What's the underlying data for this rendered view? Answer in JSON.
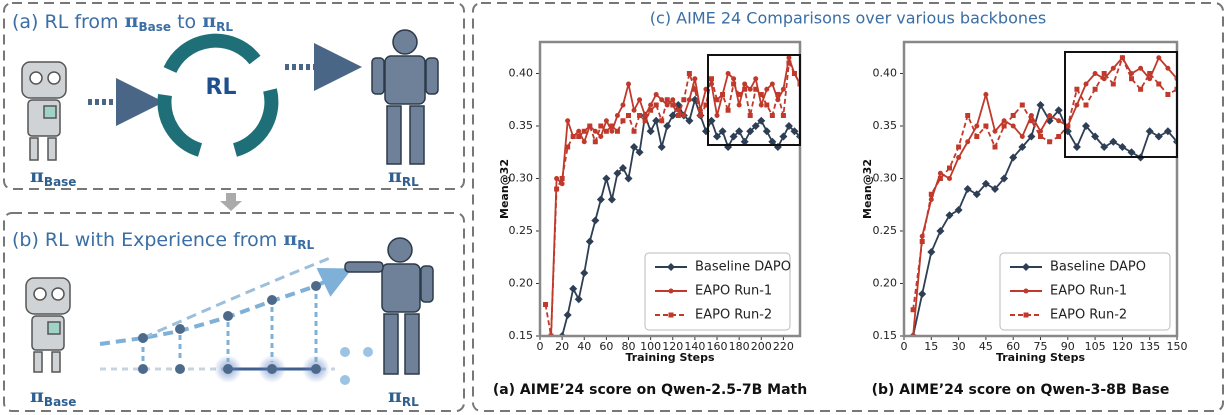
{
  "panel_a": {
    "prefix": "(a) RL from",
    "symbol_from": "π",
    "sub_from": "Base",
    "middle": "to",
    "symbol_to": "π",
    "sub_to": "RL",
    "cycle_label": "RL",
    "left_robot": {
      "symbol": "π",
      "sub": "Base"
    },
    "right_robot": {
      "symbol": "π",
      "sub": "RL"
    }
  },
  "panel_b": {
    "prefix": "(b) RL with Experience from",
    "symbol": "π",
    "sub": "RL",
    "left_robot": {
      "symbol": "π",
      "sub": "Base"
    },
    "right_robot": {
      "symbol": "π",
      "sub": "RL"
    }
  },
  "figure_title": "(c) AIME 24 Comparisons over various backbones",
  "chart_data": [
    {
      "type": "line",
      "caption": "(a) AIME’24 score on Qwen-2.5-7B Math",
      "x_label": "Training Steps",
      "y_label": "Mean@32",
      "x": [
        5,
        10,
        15,
        20,
        25,
        30,
        35,
        40,
        45,
        50,
        55,
        60,
        65,
        70,
        75,
        80,
        85,
        90,
        95,
        100,
        105,
        110,
        115,
        120,
        125,
        130,
        135,
        140,
        145,
        150,
        155,
        160,
        165,
        170,
        175,
        180,
        185,
        190,
        195,
        200,
        205,
        210,
        215,
        220,
        225,
        230,
        235
      ],
      "xlim": [
        0,
        235
      ],
      "xticks": [
        0,
        20,
        40,
        60,
        80,
        100,
        120,
        140,
        160,
        180,
        200,
        220
      ],
      "ylim": [
        0.15,
        0.43
      ],
      "yticks": [
        {
          "value": 0.15,
          "label": "0.15"
        },
        {
          "value": 0.2,
          "label": "0.20"
        },
        {
          "value": 0.25,
          "label": "0.25"
        },
        {
          "value": 0.3,
          "label": "0.30"
        },
        {
          "value": 0.35,
          "label": "0.35"
        },
        {
          "value": 0.4,
          "label": "0.40"
        }
      ],
      "legend": "lower right",
      "series": [
        {
          "name": "Baseline DAPO",
          "color": "#2e3f55",
          "marker": "diamond",
          "dash": false,
          "values": [
            null,
            null,
            null,
            0.15,
            0.17,
            0.195,
            0.185,
            0.21,
            0.24,
            0.26,
            0.28,
            0.3,
            0.28,
            0.305,
            0.31,
            0.3,
            0.33,
            0.325,
            0.36,
            0.345,
            0.355,
            0.33,
            0.35,
            0.36,
            0.37,
            0.36,
            0.355,
            0.375,
            0.36,
            0.345,
            0.355,
            0.34,
            0.345,
            0.33,
            0.34,
            0.345,
            0.335,
            0.345,
            0.35,
            0.355,
            0.345,
            0.335,
            0.33,
            0.34,
            0.35,
            0.345,
            0.34
          ]
        },
        {
          "name": "EAPO Run-1",
          "color": "#c0392b",
          "marker": "circle",
          "dash": false,
          "values": [
            null,
            0.15,
            0.3,
            0.295,
            0.355,
            0.34,
            0.345,
            0.335,
            0.35,
            0.345,
            0.34,
            0.355,
            0.345,
            0.36,
            0.37,
            0.39,
            0.365,
            0.375,
            0.36,
            0.37,
            0.38,
            0.375,
            0.37,
            0.375,
            0.365,
            0.36,
            0.375,
            0.395,
            0.365,
            0.385,
            0.39,
            0.36,
            0.38,
            0.4,
            0.395,
            0.37,
            0.39,
            0.385,
            0.395,
            0.37,
            0.385,
            0.39,
            0.375,
            0.385,
            0.415,
            0.4,
            0.39
          ]
        },
        {
          "name": "EAPO Run-2",
          "color": "#c0392b",
          "marker": "square",
          "dash": true,
          "values": [
            0.18,
            0.15,
            0.29,
            0.3,
            0.33,
            0.34,
            0.34,
            0.345,
            0.35,
            0.335,
            0.35,
            0.345,
            0.35,
            0.345,
            0.355,
            0.36,
            0.345,
            0.36,
            0.355,
            0.365,
            0.37,
            0.355,
            0.375,
            0.37,
            0.36,
            0.375,
            0.4,
            0.385,
            0.36,
            0.37,
            0.395,
            0.375,
            0.38,
            0.365,
            0.39,
            0.38,
            0.385,
            0.36,
            0.385,
            0.38,
            0.37,
            0.36,
            0.38,
            0.36,
            0.41,
            0.4,
            0.39
          ]
        }
      ]
    },
    {
      "type": "line",
      "caption": "(b) AIME’24 score on Qwen-3-8B  Base",
      "x_label": "Training Steps",
      "y_label": "Mean@32",
      "x": [
        5,
        10,
        15,
        20,
        25,
        30,
        35,
        40,
        45,
        50,
        55,
        60,
        65,
        70,
        75,
        80,
        85,
        90,
        95,
        100,
        105,
        110,
        115,
        120,
        125,
        130,
        135,
        140,
        145,
        150
      ],
      "xlim": [
        0,
        150
      ],
      "xticks": [
        0,
        15,
        30,
        45,
        60,
        75,
        90,
        105,
        120,
        135,
        150
      ],
      "ylim": [
        0.15,
        0.43
      ],
      "yticks": [
        {
          "value": 0.15,
          "label": "0.15"
        },
        {
          "value": 0.2,
          "label": "0.20"
        },
        {
          "value": 0.25,
          "label": "0.25"
        },
        {
          "value": 0.3,
          "label": "0.30"
        },
        {
          "value": 0.35,
          "label": "0.35"
        },
        {
          "value": 0.4,
          "label": "0.40"
        }
      ],
      "legend": "lower right",
      "series": [
        {
          "name": "Baseline DAPO",
          "color": "#2e3f55",
          "marker": "diamond",
          "dash": false,
          "values": [
            0.15,
            0.19,
            0.23,
            0.25,
            0.265,
            0.27,
            0.29,
            0.285,
            0.295,
            0.29,
            0.3,
            0.32,
            0.33,
            0.34,
            0.37,
            0.355,
            0.365,
            0.345,
            0.33,
            0.35,
            0.34,
            0.33,
            0.335,
            0.33,
            0.325,
            0.32,
            0.345,
            0.34,
            0.345,
            0.335
          ]
        },
        {
          "name": "EAPO Run-1",
          "color": "#c0392b",
          "marker": "circle",
          "dash": false,
          "values": [
            0.15,
            0.245,
            0.28,
            0.305,
            0.3,
            0.32,
            0.335,
            0.35,
            0.38,
            0.345,
            0.355,
            0.35,
            0.34,
            0.36,
            0.345,
            0.36,
            0.355,
            0.35,
            0.37,
            0.39,
            0.4,
            0.395,
            0.405,
            0.415,
            0.4,
            0.405,
            0.395,
            0.415,
            0.405,
            0.395
          ]
        },
        {
          "name": "EAPO Run-2",
          "color": "#c0392b",
          "marker": "square",
          "dash": true,
          "values": [
            0.175,
            0.24,
            0.285,
            0.3,
            0.31,
            0.33,
            0.36,
            0.34,
            0.35,
            0.33,
            0.35,
            0.36,
            0.37,
            0.355,
            0.34,
            0.335,
            0.34,
            0.35,
            0.385,
            0.37,
            0.385,
            0.4,
            0.39,
            0.415,
            0.395,
            0.385,
            0.4,
            0.39,
            0.38,
            0.385
          ]
        }
      ]
    }
  ]
}
